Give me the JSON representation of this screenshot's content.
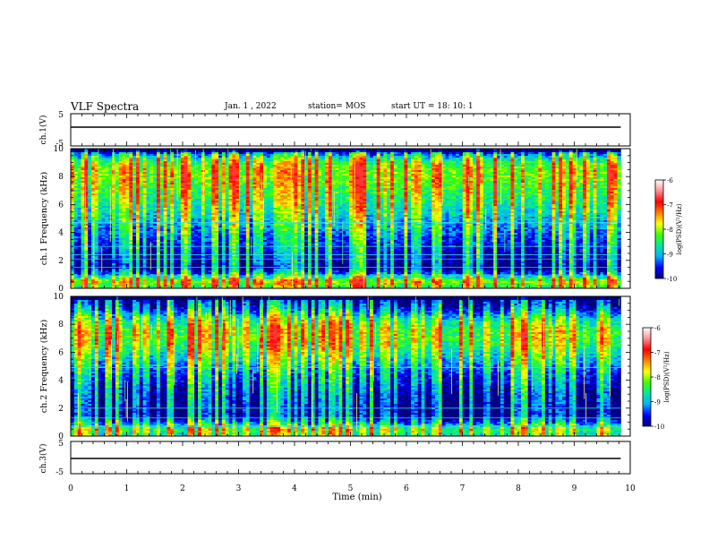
{
  "header": {
    "title": "VLF Spectra",
    "date": "Jan. 1 , 2022",
    "station": "station= MOS",
    "start": "start UT = 18: 10: 1"
  },
  "colorbar": {
    "label": "log(PSD)(V²/Hz)",
    "ticks": [
      "-6",
      "-7",
      "-8",
      "-9",
      "-10"
    ],
    "range": [
      -10,
      -6
    ],
    "stops": [
      "#000080",
      "#0000ff",
      "#00b0ff",
      "#00e8a0",
      "#40ff00",
      "#ffff00",
      "#ff8000",
      "#ff0000",
      "#ff9090",
      "#ffffff"
    ]
  },
  "chart_data": [
    {
      "type": "line",
      "name": "ch1-waveform",
      "ylabel": "ch.1(V)",
      "ylim": [
        -5,
        5
      ],
      "ytick_labels": [
        "5",
        "-5"
      ],
      "x": [
        0,
        9.83
      ],
      "y": [
        0,
        0
      ],
      "xlim": [
        0,
        10
      ]
    },
    {
      "type": "heatmap",
      "name": "ch1-spectrogram",
      "ylabel": "ch.1 Frequency (kHz)",
      "ytick_labels": [
        "0",
        "2",
        "4",
        "6",
        "8",
        "10"
      ],
      "ylim": [
        0,
        10
      ],
      "xlim": [
        0,
        10
      ],
      "data_extent_x": [
        0,
        9.83
      ],
      "log_psd_range": [
        -10,
        -6
      ],
      "frequency_profile_khz": [
        0,
        0.5,
        1,
        1.5,
        2,
        2.5,
        3,
        3.5,
        4,
        4.5,
        5,
        5.5,
        6,
        6.5,
        7,
        7.5,
        8,
        8.5,
        9,
        9.5,
        10
      ],
      "level_profile_log_psd": [
        -7.8,
        -7.0,
        -8.6,
        -9.6,
        -9.3,
        -9.2,
        -9.0,
        -8.8,
        -8.6,
        -8.4,
        -8.2,
        -8.0,
        -7.8,
        -7.6,
        -7.5,
        -7.3,
        -7.2,
        -7.2,
        -7.5,
        -8.4,
        -9.8
      ]
    },
    {
      "type": "heatmap",
      "name": "ch2-spectrogram",
      "ylabel": "ch.2 Frequency (kHz)",
      "ytick_labels": [
        "0",
        "2",
        "4",
        "6",
        "8",
        "10"
      ],
      "ylim": [
        0,
        10
      ],
      "xlim": [
        0,
        10
      ],
      "data_extent_x": [
        0,
        9.83
      ],
      "log_psd_range": [
        -10,
        -6
      ],
      "frequency_profile_khz": [
        0,
        0.5,
        1,
        1.5,
        2,
        2.5,
        3,
        3.5,
        4,
        4.5,
        5,
        5.5,
        6,
        6.5,
        7,
        7.5,
        8,
        8.5,
        9,
        9.5,
        10
      ],
      "level_profile_log_psd": [
        -8.0,
        -7.6,
        -8.8,
        -9.7,
        -9.6,
        -9.5,
        -9.4,
        -9.2,
        -9.0,
        -8.8,
        -8.5,
        -8.2,
        -7.9,
        -7.6,
        -7.4,
        -7.4,
        -7.7,
        -8.2,
        -8.9,
        -9.5,
        -9.9
      ]
    },
    {
      "type": "line",
      "name": "ch3-waveform",
      "ylabel": "ch.3(V)",
      "ylim": [
        -5,
        5
      ],
      "ytick_labels": [
        "5",
        "-5"
      ],
      "x": [
        0,
        9.83
      ],
      "y": [
        0,
        0
      ],
      "xlim": [
        0,
        10
      ]
    }
  ],
  "x_axis": {
    "label": "Time (min)",
    "tick_labels": [
      "0",
      "1",
      "2",
      "3",
      "4",
      "5",
      "6",
      "7",
      "8",
      "9",
      "10"
    ]
  }
}
